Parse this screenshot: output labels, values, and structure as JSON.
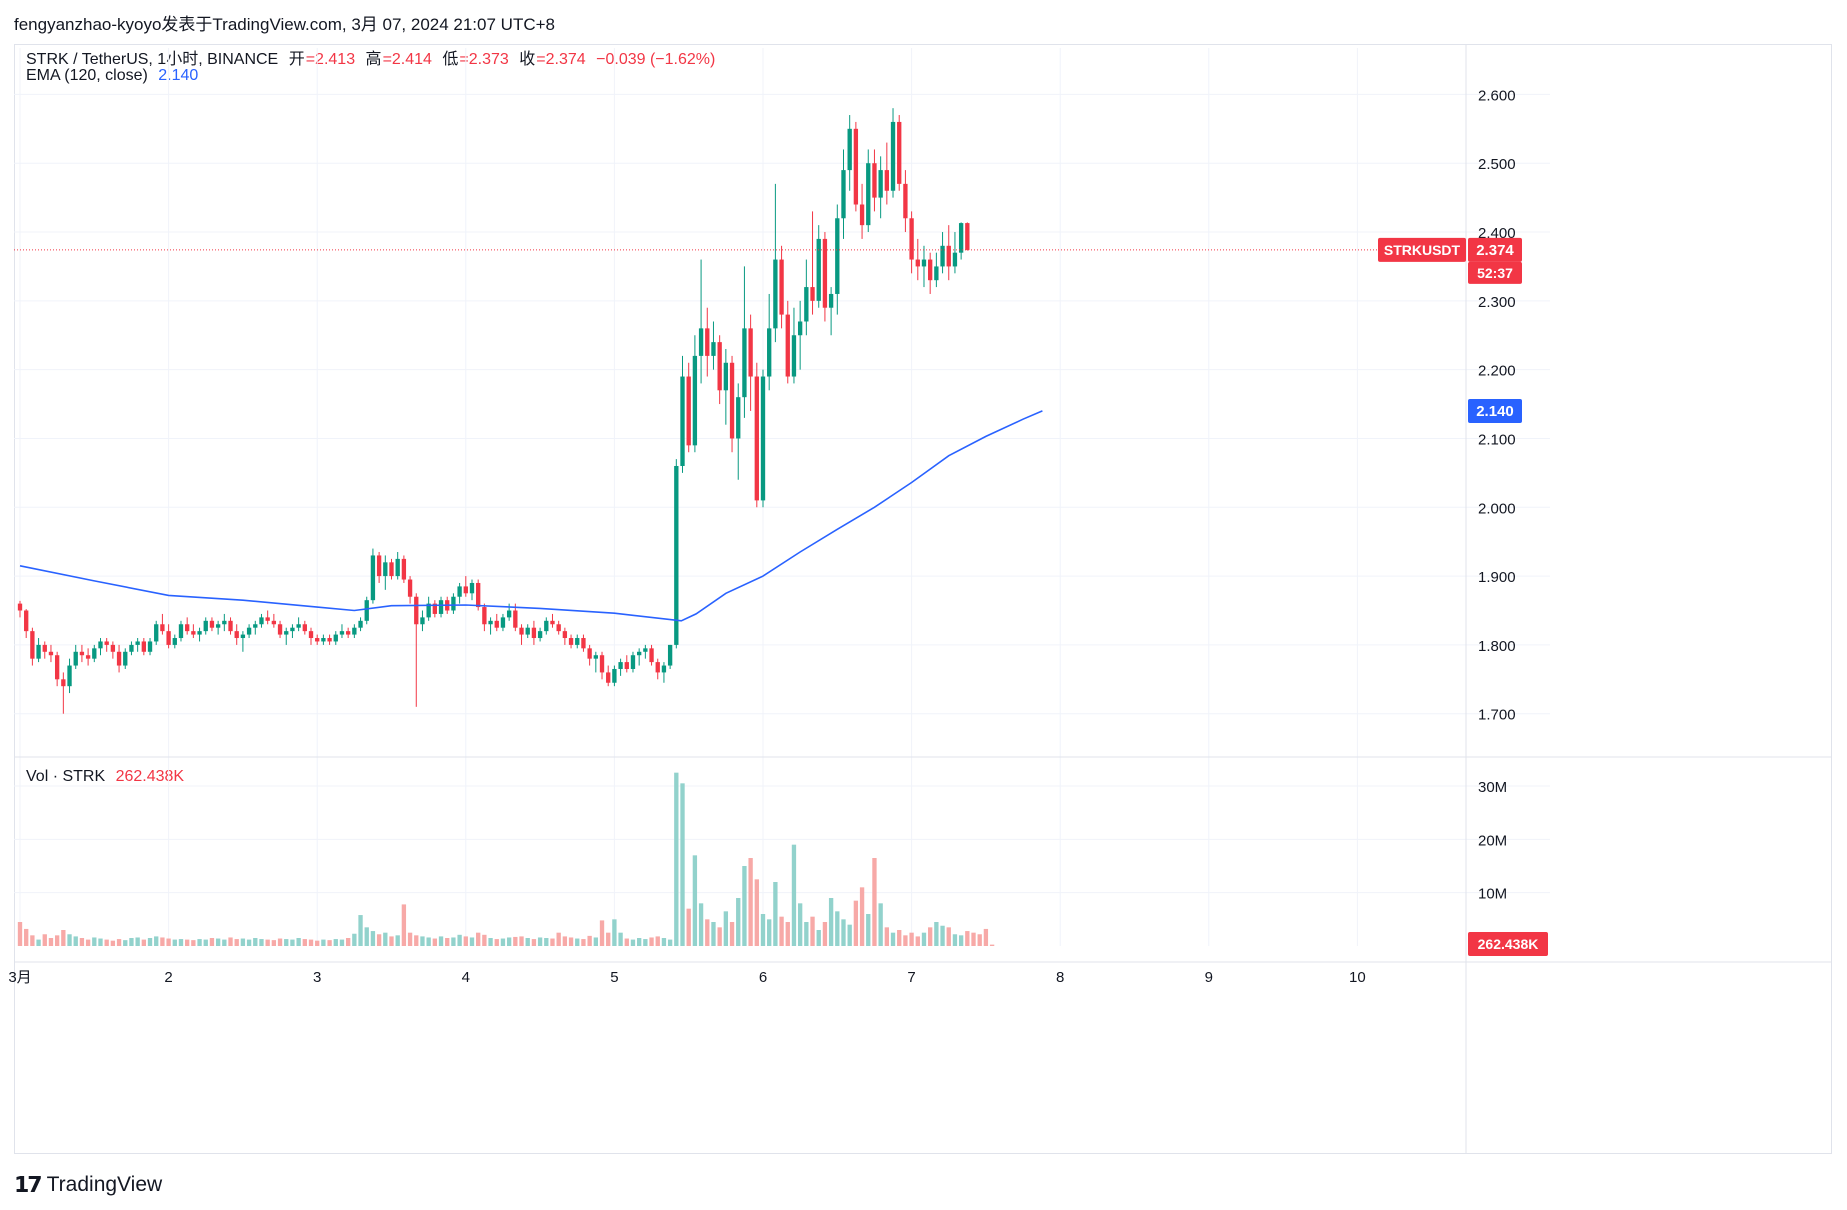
{
  "header": {
    "publish_line": "fengyanzhao-kyoyo发表于TradingView.com, 3月 07, 2024 21:07 UTC+8"
  },
  "legend": {
    "symbol": "STRK / TetherUS, 1小时, BINANCE",
    "open_label": "开",
    "open": "=2.413",
    "high_label": "高",
    "high": "=2.414",
    "low_label": "低",
    "low": "=2.373",
    "close_label": "收",
    "close": "=2.374",
    "change": "−0.039 (−1.62%)",
    "ema_label": "EMA (120, close)",
    "ema_value": "2.140",
    "vol_label": "Vol · STRK",
    "vol_value": "262.438K"
  },
  "badges": {
    "symbol": "STRKUSDT",
    "price": "2.374",
    "countdown": "52:37",
    "ema": "2.140",
    "volume": "262.438K"
  },
  "footer": {
    "brand": "TradingView",
    "logo": "tradingview-logo-icon"
  },
  "colors": {
    "up": "#089981",
    "down": "#f23645",
    "ema": "#2962ff",
    "vol_up": "#92d2cc",
    "vol_down": "#f7a9a7",
    "grid": "#f0f3fa"
  },
  "chart_data": [
    {
      "type": "candlestick",
      "title": "",
      "xlabel": "",
      "ylabel": "",
      "x_ticks": [
        "3月",
        "2",
        "3",
        "4",
        "5",
        "6",
        "7",
        "8",
        "9",
        "10"
      ],
      "x_tick_days": [
        1,
        2,
        3,
        4,
        5,
        6,
        7,
        8,
        9,
        10
      ],
      "y_ticks": [
        "1.700",
        "1.800",
        "1.900",
        "2.000",
        "2.100",
        "2.200",
        "2.300",
        "2.400",
        "2.500",
        "2.600"
      ],
      "ylim": [
        1.64,
        2.65
      ],
      "bar_interval_hours": 1,
      "first_bar_day": 1.0,
      "current_price": 2.374,
      "ema_120": [
        [
          1.0,
          1.915
        ],
        [
          1.5,
          1.893
        ],
        [
          2.0,
          1.872
        ],
        [
          2.5,
          1.865
        ],
        [
          3.0,
          1.855
        ],
        [
          3.25,
          1.85
        ],
        [
          3.5,
          1.857
        ],
        [
          4.0,
          1.858
        ],
        [
          4.5,
          1.853
        ],
        [
          5.0,
          1.846
        ],
        [
          5.45,
          1.835
        ],
        [
          5.55,
          1.845
        ],
        [
          5.75,
          1.875
        ],
        [
          6.0,
          1.9
        ],
        [
          6.25,
          1.935
        ],
        [
          6.5,
          1.968
        ],
        [
          6.75,
          2.0
        ],
        [
          7.0,
          2.036
        ],
        [
          7.25,
          2.075
        ],
        [
          7.5,
          2.103
        ],
        [
          7.75,
          2.128
        ],
        [
          7.88,
          2.14
        ]
      ],
      "ohlc": [
        [
          1.86,
          1.864,
          1.84,
          1.85
        ],
        [
          1.85,
          1.852,
          1.81,
          1.82
        ],
        [
          1.82,
          1.825,
          1.77,
          1.78
        ],
        [
          1.78,
          1.81,
          1.775,
          1.8
        ],
        [
          1.8,
          1.805,
          1.78,
          1.79
        ],
        [
          1.79,
          1.8,
          1.775,
          1.785
        ],
        [
          1.785,
          1.79,
          1.74,
          1.75
        ],
        [
          1.75,
          1.76,
          1.7,
          1.74
        ],
        [
          1.74,
          1.78,
          1.73,
          1.77
        ],
        [
          1.77,
          1.8,
          1.765,
          1.79
        ],
        [
          1.79,
          1.8,
          1.775,
          1.785
        ],
        [
          1.785,
          1.795,
          1.77,
          1.78
        ],
        [
          1.78,
          1.8,
          1.775,
          1.795
        ],
        [
          1.795,
          1.81,
          1.785,
          1.805
        ],
        [
          1.805,
          1.81,
          1.79,
          1.8
        ],
        [
          1.8,
          1.805,
          1.78,
          1.79
        ],
        [
          1.79,
          1.8,
          1.76,
          1.77
        ],
        [
          1.77,
          1.795,
          1.765,
          1.79
        ],
        [
          1.79,
          1.805,
          1.785,
          1.8
        ],
        [
          1.8,
          1.81,
          1.79,
          1.805
        ],
        [
          1.805,
          1.81,
          1.785,
          1.79
        ],
        [
          1.79,
          1.81,
          1.785,
          1.805
        ],
        [
          1.805,
          1.835,
          1.8,
          1.83
        ],
        [
          1.83,
          1.845,
          1.815,
          1.82
        ],
        [
          1.82,
          1.83,
          1.795,
          1.8
        ],
        [
          1.8,
          1.815,
          1.795,
          1.81
        ],
        [
          1.81,
          1.835,
          1.805,
          1.83
        ],
        [
          1.83,
          1.84,
          1.815,
          1.82
        ],
        [
          1.82,
          1.83,
          1.81,
          1.815
        ],
        [
          1.815,
          1.825,
          1.805,
          1.82
        ],
        [
          1.82,
          1.84,
          1.815,
          1.835
        ],
        [
          1.835,
          1.84,
          1.82,
          1.825
        ],
        [
          1.825,
          1.835,
          1.815,
          1.83
        ],
        [
          1.83,
          1.845,
          1.82,
          1.835
        ],
        [
          1.835,
          1.84,
          1.815,
          1.82
        ],
        [
          1.82,
          1.83,
          1.8,
          1.81
        ],
        [
          1.81,
          1.82,
          1.79,
          1.815
        ],
        [
          1.815,
          1.83,
          1.81,
          1.825
        ],
        [
          1.825,
          1.835,
          1.815,
          1.83
        ],
        [
          1.83,
          1.845,
          1.825,
          1.84
        ],
        [
          1.84,
          1.85,
          1.83,
          1.835
        ],
        [
          1.835,
          1.845,
          1.825,
          1.83
        ],
        [
          1.83,
          1.835,
          1.81,
          1.815
        ],
        [
          1.815,
          1.825,
          1.8,
          1.82
        ],
        [
          1.82,
          1.83,
          1.81,
          1.825
        ],
        [
          1.825,
          1.84,
          1.82,
          1.83
        ],
        [
          1.83,
          1.835,
          1.815,
          1.82
        ],
        [
          1.82,
          1.825,
          1.8,
          1.81
        ],
        [
          1.81,
          1.815,
          1.8,
          1.805
        ],
        [
          1.805,
          1.815,
          1.8,
          1.81
        ],
        [
          1.81,
          1.815,
          1.8,
          1.805
        ],
        [
          1.805,
          1.82,
          1.8,
          1.815
        ],
        [
          1.815,
          1.83,
          1.81,
          1.82
        ],
        [
          1.82,
          1.825,
          1.81,
          1.815
        ],
        [
          1.815,
          1.83,
          1.81,
          1.825
        ],
        [
          1.825,
          1.84,
          1.82,
          1.835
        ],
        [
          1.835,
          1.87,
          1.83,
          1.865
        ],
        [
          1.865,
          1.94,
          1.86,
          1.93
        ],
        [
          1.93,
          1.935,
          1.89,
          1.9
        ],
        [
          1.9,
          1.93,
          1.88,
          1.92
        ],
        [
          1.92,
          1.925,
          1.895,
          1.9
        ],
        [
          1.9,
          1.935,
          1.895,
          1.925
        ],
        [
          1.925,
          1.93,
          1.89,
          1.895
        ],
        [
          1.895,
          1.9,
          1.86,
          1.87
        ],
        [
          1.87,
          1.875,
          1.71,
          1.83
        ],
        [
          1.83,
          1.85,
          1.82,
          1.84
        ],
        [
          1.84,
          1.87,
          1.835,
          1.86
        ],
        [
          1.86,
          1.865,
          1.84,
          1.845
        ],
        [
          1.845,
          1.87,
          1.84,
          1.865
        ],
        [
          1.865,
          1.87,
          1.845,
          1.85
        ],
        [
          1.85,
          1.875,
          1.845,
          1.87
        ],
        [
          1.87,
          1.89,
          1.86,
          1.885
        ],
        [
          1.885,
          1.9,
          1.87,
          1.875
        ],
        [
          1.875,
          1.895,
          1.865,
          1.89
        ],
        [
          1.89,
          1.895,
          1.85,
          1.855
        ],
        [
          1.855,
          1.86,
          1.82,
          1.83
        ],
        [
          1.83,
          1.84,
          1.815,
          1.835
        ],
        [
          1.835,
          1.845,
          1.82,
          1.825
        ],
        [
          1.825,
          1.845,
          1.82,
          1.84
        ],
        [
          1.84,
          1.86,
          1.835,
          1.85
        ],
        [
          1.85,
          1.86,
          1.82,
          1.825
        ],
        [
          1.825,
          1.83,
          1.8,
          1.815
        ],
        [
          1.815,
          1.83,
          1.81,
          1.825
        ],
        [
          1.825,
          1.835,
          1.8,
          1.81
        ],
        [
          1.81,
          1.825,
          1.805,
          1.82
        ],
        [
          1.82,
          1.84,
          1.815,
          1.835
        ],
        [
          1.835,
          1.845,
          1.825,
          1.83
        ],
        [
          1.83,
          1.835,
          1.815,
          1.82
        ],
        [
          1.82,
          1.825,
          1.8,
          1.81
        ],
        [
          1.81,
          1.815,
          1.795,
          1.8
        ],
        [
          1.8,
          1.815,
          1.795,
          1.81
        ],
        [
          1.81,
          1.815,
          1.79,
          1.795
        ],
        [
          1.795,
          1.8,
          1.77,
          1.78
        ],
        [
          1.78,
          1.79,
          1.76,
          1.785
        ],
        [
          1.785,
          1.79,
          1.75,
          1.76
        ],
        [
          1.76,
          1.77,
          1.74,
          1.745
        ],
        [
          1.745,
          1.77,
          1.74,
          1.765
        ],
        [
          1.765,
          1.78,
          1.755,
          1.775
        ],
        [
          1.775,
          1.785,
          1.76,
          1.765
        ],
        [
          1.765,
          1.79,
          1.76,
          1.785
        ],
        [
          1.785,
          1.795,
          1.77,
          1.79
        ],
        [
          1.79,
          1.8,
          1.78,
          1.795
        ],
        [
          1.795,
          1.8,
          1.77,
          1.775
        ],
        [
          1.775,
          1.78,
          1.75,
          1.76
        ],
        [
          1.76,
          1.775,
          1.745,
          1.77
        ],
        [
          1.77,
          1.8,
          1.765,
          1.8
        ],
        [
          1.8,
          2.07,
          1.795,
          2.06
        ],
        [
          2.06,
          2.22,
          2.05,
          2.19
        ],
        [
          2.19,
          2.21,
          2.08,
          2.09
        ],
        [
          2.09,
          2.25,
          2.08,
          2.22
        ],
        [
          2.22,
          2.36,
          2.18,
          2.26
        ],
        [
          2.26,
          2.29,
          2.19,
          2.22
        ],
        [
          2.22,
          2.27,
          2.2,
          2.24
        ],
        [
          2.24,
          2.25,
          2.15,
          2.17
        ],
        [
          2.17,
          2.23,
          2.12,
          2.21
        ],
        [
          2.21,
          2.22,
          2.08,
          2.1
        ],
        [
          2.1,
          2.18,
          2.04,
          2.16
        ],
        [
          2.16,
          2.35,
          2.13,
          2.26
        ],
        [
          2.26,
          2.28,
          2.14,
          2.19
        ],
        [
          2.19,
          2.21,
          2.0,
          2.01
        ],
        [
          2.01,
          2.2,
          2.0,
          2.19
        ],
        [
          2.19,
          2.31,
          2.17,
          2.26
        ],
        [
          2.26,
          2.47,
          2.24,
          2.36
        ],
        [
          2.36,
          2.38,
          2.26,
          2.28
        ],
        [
          2.28,
          2.3,
          2.18,
          2.19
        ],
        [
          2.19,
          2.29,
          2.18,
          2.25
        ],
        [
          2.25,
          2.3,
          2.2,
          2.27
        ],
        [
          2.27,
          2.36,
          2.25,
          2.32
        ],
        [
          2.32,
          2.43,
          2.28,
          2.3
        ],
        [
          2.3,
          2.41,
          2.29,
          2.39
        ],
        [
          2.39,
          2.4,
          2.27,
          2.29
        ],
        [
          2.29,
          2.32,
          2.25,
          2.31
        ],
        [
          2.31,
          2.44,
          2.28,
          2.42
        ],
        [
          2.42,
          2.52,
          2.39,
          2.49
        ],
        [
          2.49,
          2.57,
          2.46,
          2.55
        ],
        [
          2.55,
          2.56,
          2.43,
          2.44
        ],
        [
          2.44,
          2.47,
          2.39,
          2.41
        ],
        [
          2.41,
          2.52,
          2.4,
          2.5
        ],
        [
          2.5,
          2.52,
          2.43,
          2.45
        ],
        [
          2.45,
          2.51,
          2.42,
          2.49
        ],
        [
          2.49,
          2.53,
          2.44,
          2.46
        ],
        [
          2.46,
          2.58,
          2.45,
          2.56
        ],
        [
          2.56,
          2.57,
          2.46,
          2.47
        ],
        [
          2.47,
          2.49,
          2.4,
          2.42
        ],
        [
          2.42,
          2.43,
          2.34,
          2.36
        ],
        [
          2.36,
          2.39,
          2.33,
          2.35
        ],
        [
          2.35,
          2.38,
          2.32,
          2.36
        ],
        [
          2.36,
          2.37,
          2.31,
          2.33
        ],
        [
          2.33,
          2.37,
          2.32,
          2.35
        ],
        [
          2.35,
          2.4,
          2.34,
          2.38
        ],
        [
          2.38,
          2.41,
          2.33,
          2.35
        ],
        [
          2.35,
          2.4,
          2.34,
          2.37
        ],
        [
          2.37,
          2.414,
          2.36,
          2.413
        ],
        [
          2.413,
          2.414,
          2.373,
          2.374
        ]
      ]
    },
    {
      "type": "bar",
      "title": "Vol · STRK",
      "y_ticks": [
        "10M",
        "20M",
        "30M"
      ],
      "ylim": [
        0,
        33
      ],
      "unit": "M",
      "volume_m": [
        4.5,
        3.2,
        2.0,
        1.2,
        2.2,
        1.5,
        2.0,
        3.0,
        2.2,
        1.8,
        1.5,
        1.2,
        1.6,
        1.4,
        1.2,
        1.0,
        1.3,
        1.1,
        1.5,
        1.6,
        1.2,
        1.5,
        1.8,
        1.6,
        1.4,
        1.2,
        1.3,
        1.2,
        1.1,
        1.3,
        1.2,
        1.5,
        1.4,
        1.2,
        1.6,
        1.3,
        1.4,
        1.2,
        1.5,
        1.3,
        1.2,
        1.1,
        1.4,
        1.3,
        1.2,
        1.5,
        1.3,
        1.2,
        1.0,
        1.2,
        1.1,
        1.3,
        1.2,
        1.5,
        2.3,
        5.8,
        3.5,
        2.8,
        2.2,
        2.5,
        1.8,
        2.0,
        7.8,
        2.5,
        2.0,
        1.8,
        1.6,
        1.4,
        1.8,
        1.5,
        1.6,
        2.1,
        1.8,
        1.6,
        2.5,
        2.1,
        1.5,
        1.3,
        1.4,
        1.6,
        1.7,
        1.8,
        1.5,
        1.3,
        1.6,
        1.5,
        1.4,
        2.5,
        1.8,
        1.6,
        1.4,
        1.3,
        1.9,
        1.6,
        4.8,
        2.5,
        5.0,
        2.5,
        1.4,
        1.2,
        1.5,
        1.3,
        1.6,
        1.8,
        1.5,
        1.2,
        32.5,
        30.5,
        7.0,
        17.0,
        8.0,
        5.0,
        4.5,
        3.5,
        6.5,
        4.5,
        9.0,
        15.0,
        16.5,
        12.5,
        6.0,
        5.0,
        12.0,
        5.5,
        4.5,
        19.0,
        8.0,
        4.5,
        5.5,
        3.0,
        4.5,
        9.0,
        6.5,
        5.0,
        4.0,
        8.5,
        11.0,
        6.0,
        16.5,
        8.0,
        3.5,
        2.5,
        3.0,
        2.0,
        2.5,
        1.8,
        2.5,
        3.5,
        4.5,
        3.8,
        3.5,
        2.2,
        2.0,
        2.8,
        2.5,
        2.2,
        3.2,
        0.26
      ]
    }
  ]
}
